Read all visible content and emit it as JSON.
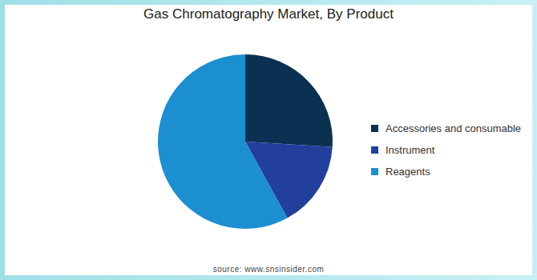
{
  "chart_data": {
    "type": "pie",
    "title": "Gas Chromatography Market, By Product",
    "categories": [
      "Accessories and consumable",
      "Instrument",
      "Reagents"
    ],
    "values": [
      26,
      16,
      58
    ],
    "colors": [
      "#0b3152",
      "#223f9e",
      "#1b8fd0"
    ],
    "legend": "right",
    "source": "source: www.snsinsider.com"
  }
}
